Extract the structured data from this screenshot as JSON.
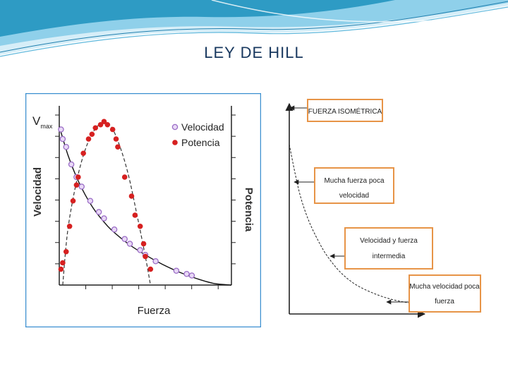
{
  "slide": {
    "title": "LEY DE HILL"
  },
  "colors": {
    "title": "#17375e",
    "wave_dark": "#2e9bc4",
    "wave_light": "#bfe4f3",
    "chart_border": "#3b8fd0",
    "velocity_marker": "#b98fd8",
    "power_marker": "#d62020",
    "box_border": "#e79447"
  },
  "chart_data": [
    {
      "type": "scatter",
      "title": "",
      "xlabel": "Fuerza",
      "ylabel": "Velocidad",
      "y2label": "Potencia",
      "ymax_label": "V",
      "ymax_subscript": "max",
      "xlim": [
        0,
        1
      ],
      "ylim": [
        0,
        1
      ],
      "legend": {
        "position": "top-right",
        "entries": [
          "Velocidad",
          "Potencia"
        ]
      },
      "series": [
        {
          "name": "Velocidad",
          "marker": "open-circle",
          "points": [
            [
              0.01,
              0.98
            ],
            [
              0.02,
              0.92
            ],
            [
              0.04,
              0.87
            ],
            [
              0.07,
              0.76
            ],
            [
              0.1,
              0.68
            ],
            [
              0.13,
              0.62
            ],
            [
              0.18,
              0.53
            ],
            [
              0.23,
              0.46
            ],
            [
              0.26,
              0.42
            ],
            [
              0.32,
              0.35
            ],
            [
              0.38,
              0.29
            ],
            [
              0.41,
              0.26
            ],
            [
              0.47,
              0.22
            ],
            [
              0.5,
              0.19
            ],
            [
              0.56,
              0.15
            ],
            [
              0.68,
              0.09
            ],
            [
              0.74,
              0.07
            ],
            [
              0.77,
              0.06
            ]
          ]
        },
        {
          "name": "Potencia",
          "marker": "filled-circle",
          "points": [
            [
              0.01,
              0.1
            ],
            [
              0.02,
              0.14
            ],
            [
              0.04,
              0.21
            ],
            [
              0.06,
              0.37
            ],
            [
              0.08,
              0.53
            ],
            [
              0.1,
              0.63
            ],
            [
              0.11,
              0.68
            ],
            [
              0.14,
              0.83
            ],
            [
              0.17,
              0.92
            ],
            [
              0.19,
              0.95
            ],
            [
              0.21,
              0.99
            ],
            [
              0.24,
              1.01
            ],
            [
              0.26,
              1.03
            ],
            [
              0.28,
              1.01
            ],
            [
              0.31,
              0.98
            ],
            [
              0.33,
              0.92
            ],
            [
              0.34,
              0.87
            ],
            [
              0.38,
              0.68
            ],
            [
              0.42,
              0.56
            ],
            [
              0.44,
              0.44
            ],
            [
              0.47,
              0.37
            ],
            [
              0.49,
              0.26
            ],
            [
              0.5,
              0.18
            ],
            [
              0.53,
              0.1
            ]
          ]
        }
      ],
      "curves": [
        {
          "name": "Velocidad",
          "style": "solid",
          "points": [
            [
              0,
              1.0
            ],
            [
              0.05,
              0.82
            ],
            [
              0.1,
              0.68
            ],
            [
              0.15,
              0.57
            ],
            [
              0.2,
              0.48
            ],
            [
              0.25,
              0.41
            ],
            [
              0.3,
              0.35
            ],
            [
              0.4,
              0.26
            ],
            [
              0.5,
              0.19
            ],
            [
              0.6,
              0.13
            ],
            [
              0.7,
              0.08
            ],
            [
              0.8,
              0.04
            ],
            [
              0.9,
              0.01
            ],
            [
              1.0,
              0.0
            ]
          ]
        },
        {
          "name": "Potencia",
          "style": "dashed",
          "points": [
            [
              0.02,
              0.0
            ],
            [
              0.05,
              0.35
            ],
            [
              0.1,
              0.65
            ],
            [
              0.15,
              0.85
            ],
            [
              0.2,
              0.97
            ],
            [
              0.25,
              1.02
            ],
            [
              0.3,
              1.0
            ],
            [
              0.35,
              0.88
            ],
            [
              0.4,
              0.7
            ],
            [
              0.45,
              0.45
            ],
            [
              0.5,
              0.18
            ],
            [
              0.53,
              0.0
            ]
          ]
        }
      ]
    },
    {
      "type": "line",
      "title": "",
      "xlabel": "",
      "ylabel": "",
      "xlim": [
        0,
        1
      ],
      "ylim": [
        0,
        1
      ],
      "curve": [
        [
          0,
          0.82
        ],
        [
          0.03,
          0.68
        ],
        [
          0.06,
          0.56
        ],
        [
          0.1,
          0.45
        ],
        [
          0.15,
          0.35
        ],
        [
          0.2,
          0.27
        ],
        [
          0.27,
          0.19
        ],
        [
          0.35,
          0.13
        ],
        [
          0.45,
          0.085
        ],
        [
          0.55,
          0.055
        ],
        [
          0.65,
          0.038
        ],
        [
          0.75,
          0.028
        ],
        [
          0.85,
          0.022
        ],
        [
          0.95,
          0.02
        ]
      ],
      "annotations": [
        {
          "text": "FUERZA ISOMÉTRICA",
          "lines": [
            "FUERZA ISOMÉTRICA"
          ],
          "target": [
            0,
            0.98
          ]
        },
        {
          "text": "Mucha fuerza poca velocidad",
          "lines": [
            "Mucha fuerza poca",
            "velocidad"
          ],
          "target": [
            0.03,
            0.63
          ]
        },
        {
          "text": "Velocidad y fuerza intermedia",
          "lines": [
            "Velocidad y fuerza",
            "intermedia"
          ],
          "target": [
            0.28,
            0.28
          ]
        },
        {
          "text": "Mucha velocidad poca fuerza",
          "lines": [
            "Mucha velocidad poca",
            "fuerza"
          ],
          "target": [
            0.6,
            0.06
          ]
        }
      ]
    }
  ]
}
